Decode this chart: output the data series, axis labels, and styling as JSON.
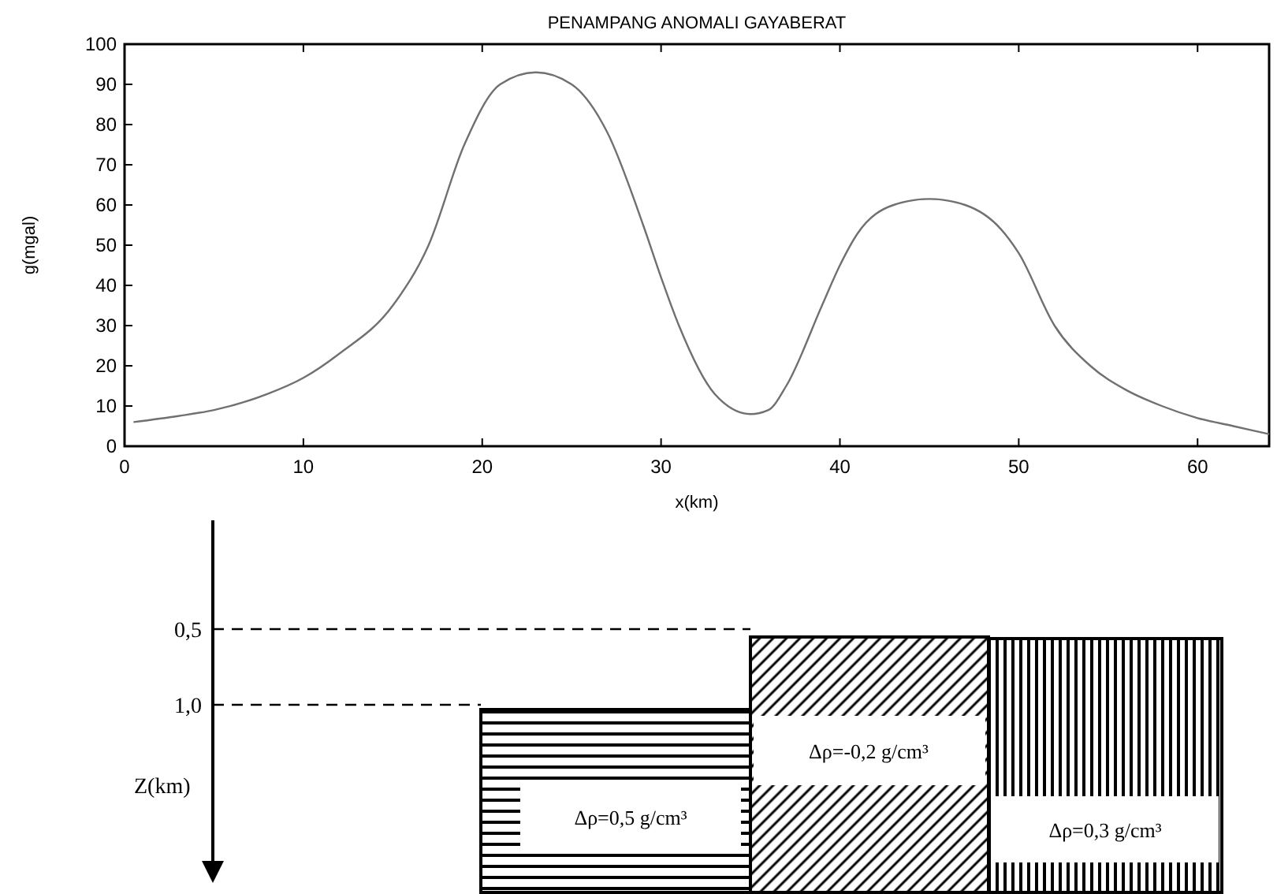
{
  "chart_data": {
    "type": "line",
    "title": "PENAMPANG ANOMALI GAYABERAT",
    "xlabel": "x(km)",
    "ylabel": "g(mgal)",
    "x": [
      0.5,
      3,
      5,
      8,
      10,
      12,
      15,
      17,
      19,
      21,
      23,
      25,
      27,
      29,
      30,
      31,
      33,
      35,
      36,
      37,
      39,
      40,
      41,
      43,
      45,
      47,
      49,
      50,
      52,
      54,
      56,
      58,
      60,
      62,
      64
    ],
    "series": [
      {
        "color": "#707070",
        "values": [
          6,
          7.5,
          9,
          13,
          17,
          23,
          35,
          50,
          75,
          90,
          93,
          90,
          78,
          55,
          42,
          30,
          13,
          8,
          9,
          15,
          35,
          45,
          53,
          60,
          61.5,
          60,
          54,
          48,
          30,
          20,
          14,
          10,
          7,
          5,
          3
        ]
      }
    ],
    "xlim": [
      0,
      64
    ],
    "ylim": [
      0,
      100
    ],
    "xticks": [
      0,
      10,
      20,
      30,
      40,
      50,
      60
    ],
    "yticks": [
      0,
      10,
      20,
      30,
      40,
      50,
      60,
      70,
      80,
      90,
      100
    ],
    "grid": false,
    "marker": "none",
    "line_style": "solid",
    "annotations": [
      "0,5",
      "1,0",
      "Z(km)",
      "Δρ=0,5 g/cm³",
      "Δρ=-0,2 g/cm³",
      "Δρ=0,3 g/cm³"
    ]
  }
}
